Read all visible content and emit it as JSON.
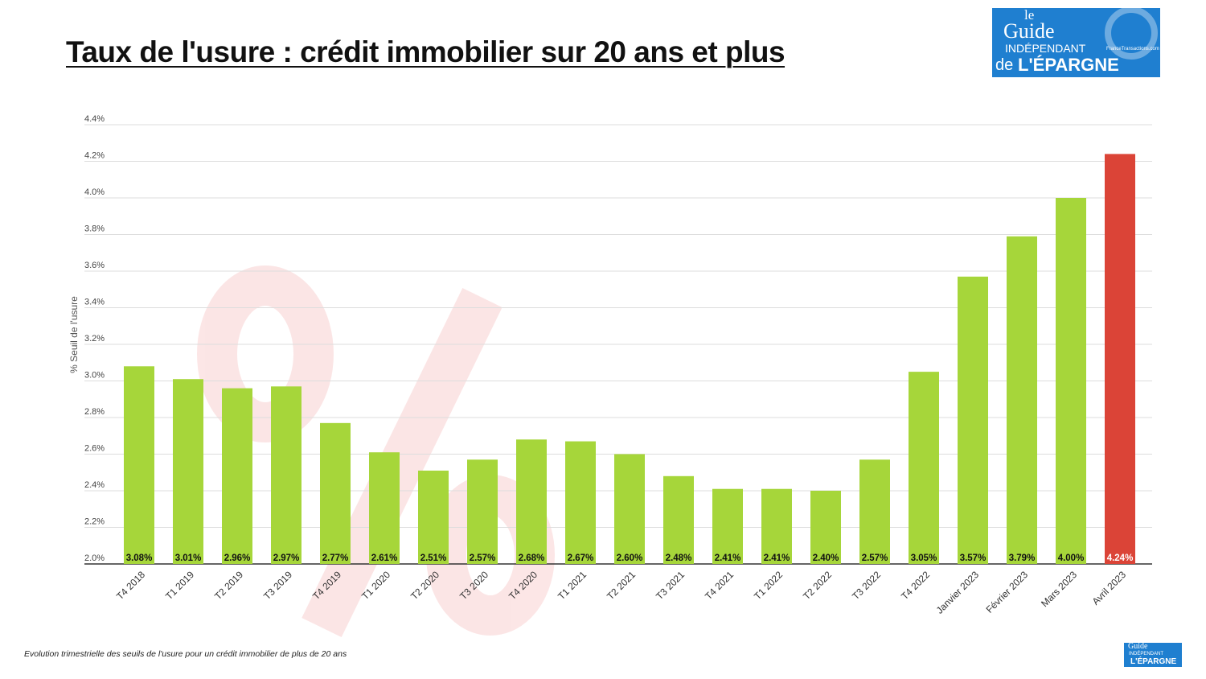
{
  "title": "Taux de l'usure : crédit immobilier sur 20 ans et plus",
  "logo": {
    "line1": "le",
    "line2": "Guide",
    "line3": "INDÉPENDANT",
    "line4": "de",
    "line5": "L'ÉPARGNE",
    "site": "FranceTransactions.com"
  },
  "caption": "Evolution trimestrielle des seuils de l'usure pour un crédit immobilier de plus de 20 ans",
  "colors": {
    "bar": "#a6d63a",
    "highlight": "#db4437",
    "grid": "#dddddd"
  },
  "chart_data": {
    "type": "bar",
    "title": "Taux de l'usure : crédit immobilier sur 20 ans et plus",
    "xlabel": "",
    "ylabel": "% Seuil de l'usure",
    "ylim": [
      2.0,
      4.4
    ],
    "yticks": [
      "2.0%",
      "2.2%",
      "2.4%",
      "2.6%",
      "2.8%",
      "3.0%",
      "3.2%",
      "3.4%",
      "3.6%",
      "3.8%",
      "4.0%",
      "4.2%",
      "4.4%"
    ],
    "grid": true,
    "categories": [
      "T4 2018",
      "T1 2019",
      "T2 2019",
      "T3 2019",
      "T4 2019",
      "T1 2020",
      "T2 2020",
      "T3 2020",
      "T4 2020",
      "T1 2021",
      "T2 2021",
      "T3 2021",
      "T4 2021",
      "T1 2022",
      "T2 2022",
      "T3 2022",
      "T4 2022",
      "Janvier 2023",
      "Février 2023",
      "Mars 2023",
      "Avril 2023"
    ],
    "values": [
      3.08,
      3.01,
      2.96,
      2.97,
      2.77,
      2.61,
      2.51,
      2.57,
      2.68,
      2.67,
      2.6,
      2.48,
      2.41,
      2.41,
      2.4,
      2.57,
      3.05,
      3.57,
      3.79,
      4.0,
      4.24
    ],
    "labels": [
      "3.08%",
      "3.01%",
      "2.96%",
      "2.97%",
      "2.77%",
      "2.61%",
      "2.51%",
      "2.57%",
      "2.68%",
      "2.67%",
      "2.60%",
      "2.48%",
      "2.41%",
      "2.41%",
      "2.40%",
      "2.57%",
      "3.05%",
      "3.57%",
      "3.79%",
      "4.00%",
      "4.24%"
    ],
    "highlight_index": 20
  }
}
